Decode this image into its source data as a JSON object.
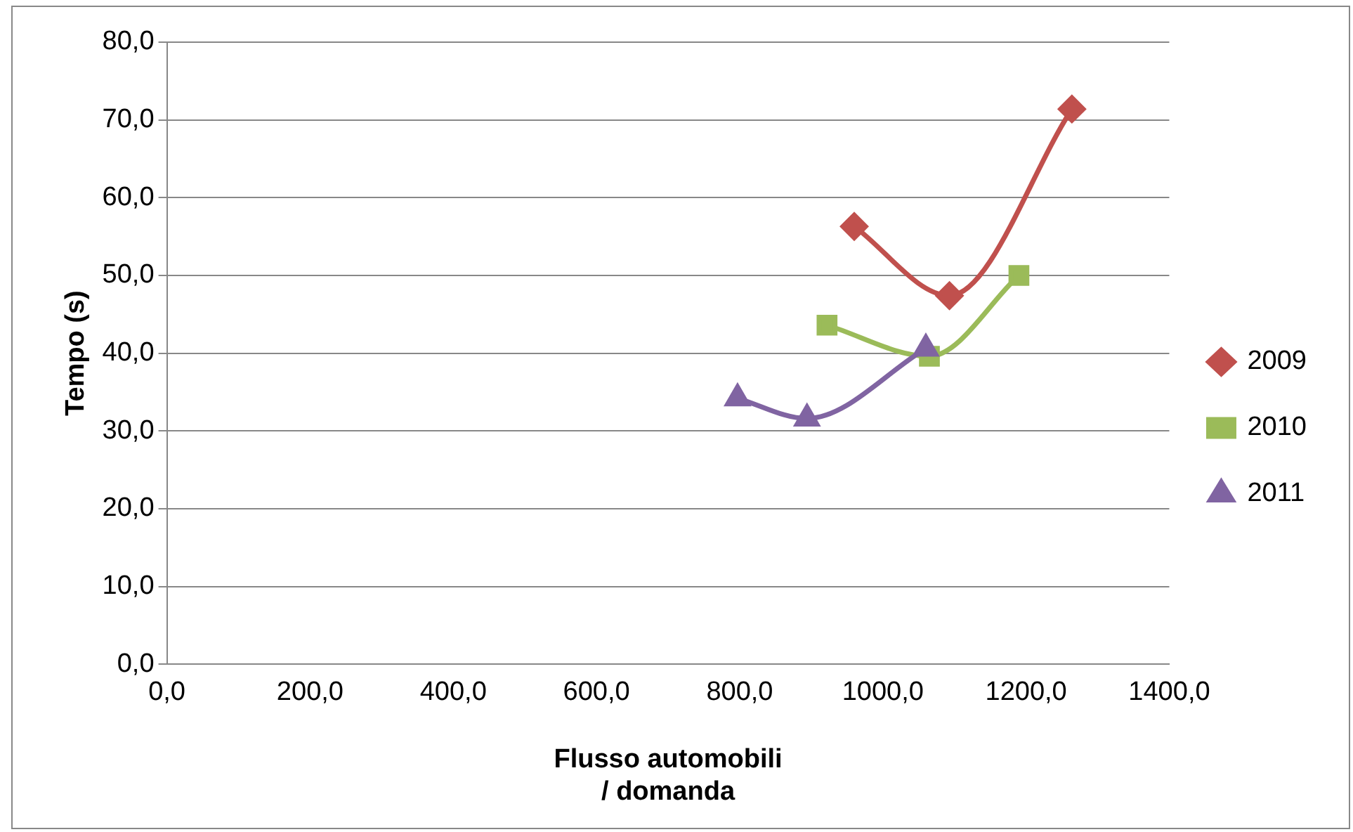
{
  "chart_data": {
    "type": "line",
    "xlabel": "Flusso automobili\n/ domanda",
    "ylabel": "Tempo (s)",
    "xlim": [
      0,
      1400
    ],
    "xticks": [
      {
        "value": 0,
        "label": "0,0"
      },
      {
        "value": 200,
        "label": "200,0"
      },
      {
        "value": 400,
        "label": "400,0"
      },
      {
        "value": 600,
        "label": "600,0"
      },
      {
        "value": 800,
        "label": "800,0"
      },
      {
        "value": 1000,
        "label": "1000,0"
      },
      {
        "value": 1200,
        "label": "1200,0"
      },
      {
        "value": 1400,
        "label": "1400,0"
      }
    ],
    "ylim": [
      0,
      80
    ],
    "yticks": [
      {
        "value": 0,
        "label": "0,0"
      },
      {
        "value": 10,
        "label": "10,0"
      },
      {
        "value": 20,
        "label": "20,0"
      },
      {
        "value": 30,
        "label": "30,0"
      },
      {
        "value": 40,
        "label": "40,0"
      },
      {
        "value": 50,
        "label": "50,0"
      },
      {
        "value": 60,
        "label": "60,0"
      },
      {
        "value": 70,
        "label": "70,0"
      },
      {
        "value": 80,
        "label": "80,0"
      }
    ],
    "grid": "y",
    "legend": "right",
    "series": [
      {
        "name": "2009",
        "color": "#c0504d",
        "marker": "diamond",
        "x": [
          960,
          1093,
          1264
        ],
        "values": [
          56.3,
          47.4,
          71.4
        ]
      },
      {
        "name": "2010",
        "color": "#9bbb59",
        "marker": "square",
        "x": [
          922,
          1065,
          1190
        ],
        "values": [
          43.6,
          39.6,
          50.0
        ]
      },
      {
        "name": "2011",
        "color": "#8064a2",
        "marker": "triangle",
        "x": [
          797,
          894,
          1060
        ],
        "values": [
          34.2,
          31.6,
          40.6
        ]
      }
    ]
  }
}
